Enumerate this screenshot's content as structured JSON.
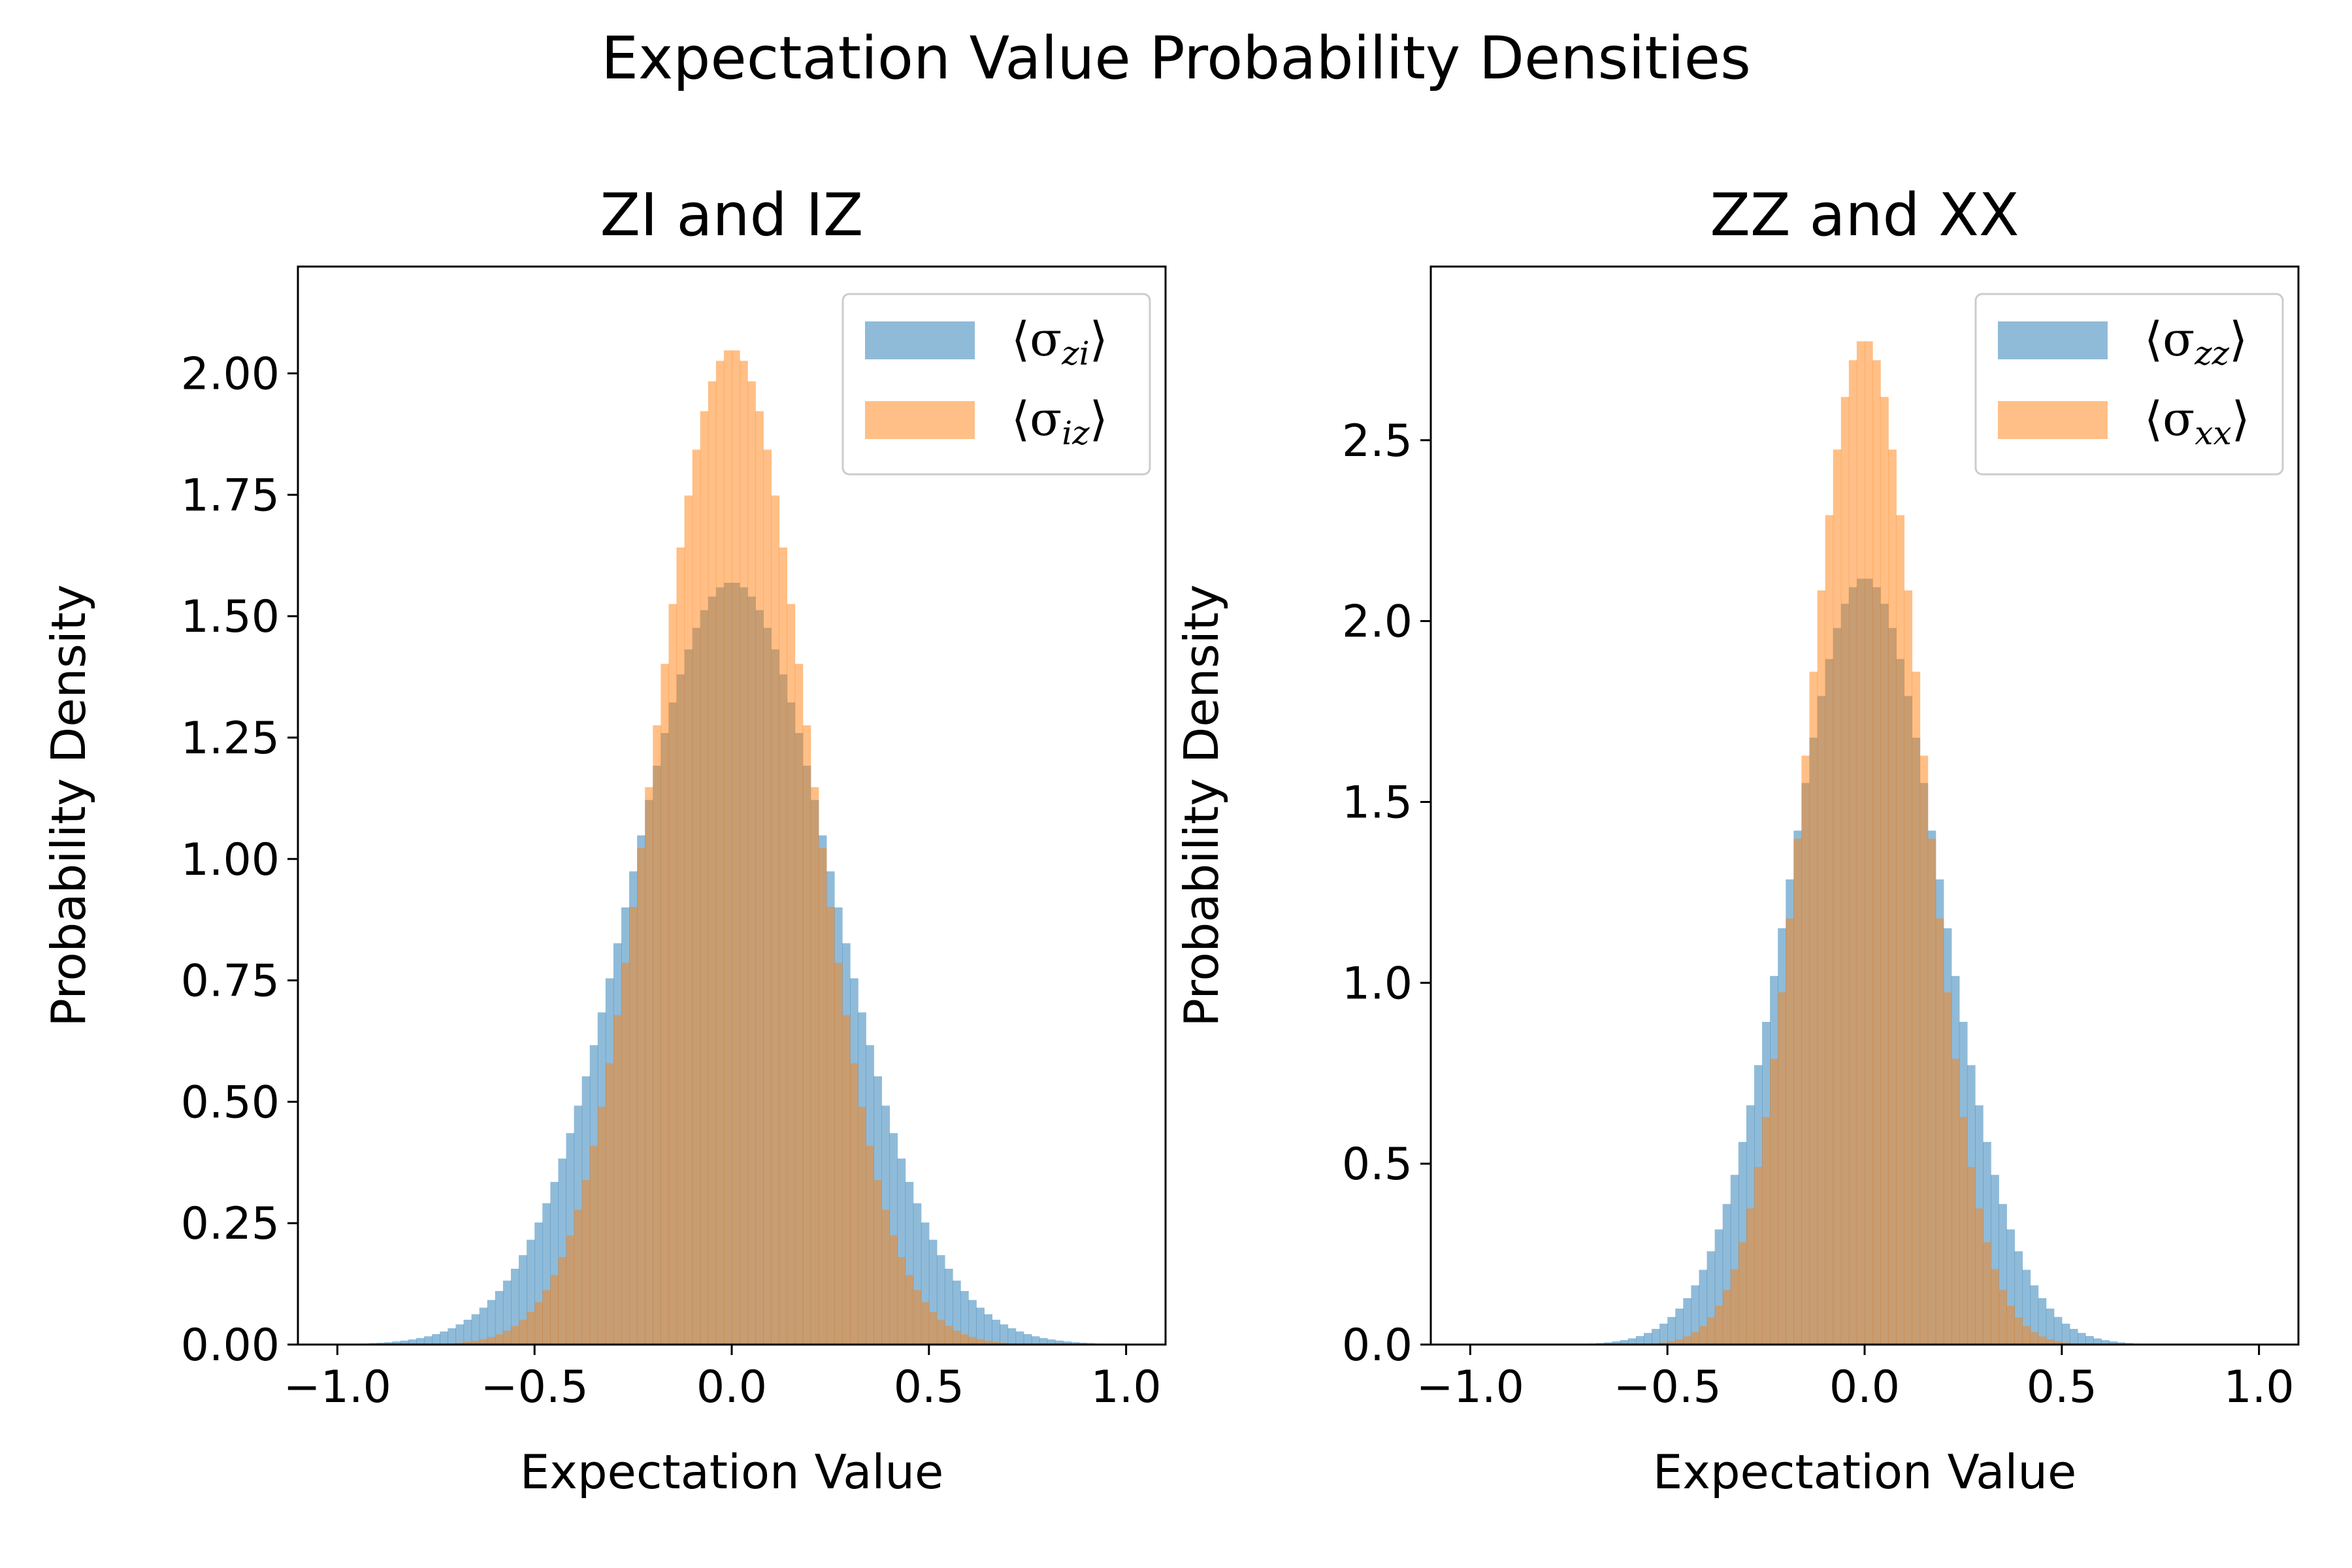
{
  "figure": {
    "title": "Expectation Value Probability Densities"
  },
  "chart_data": [
    {
      "type": "histogram",
      "title": "ZI and IZ",
      "xlabel": "Expectation Value",
      "ylabel": "Probability Density",
      "xlim": [
        -1.1,
        1.1
      ],
      "ylim": [
        0,
        2.22
      ],
      "xticks": [
        -1.0,
        -0.5,
        0.0,
        0.5,
        1.0
      ],
      "xtick_labels": [
        "−1.0",
        "−0.5",
        "0.0",
        "0.5",
        "1.0"
      ],
      "yticks": [
        0,
        0.25,
        0.5,
        0.75,
        1.0,
        1.25,
        1.5,
        1.75,
        2.0
      ],
      "ytick_labels": [
        "0.00",
        "0.25",
        "0.50",
        "0.75",
        "1.00",
        "1.25",
        "1.50",
        "1.75",
        "2.00"
      ],
      "legend_position": "upper right",
      "bins": 100,
      "series": [
        {
          "name": "⟨σ",
          "sub": "zi",
          "close": "⟩",
          "color": "#1f77b4",
          "alpha": 0.5,
          "sigma": 0.256,
          "peak": 1.57
        },
        {
          "name": "⟨σ",
          "sub": "iz",
          "close": "⟩",
          "color": "#ff7f0e",
          "alpha": 0.5,
          "sigma": 0.195,
          "peak": 2.05
        }
      ]
    },
    {
      "type": "histogram",
      "title": "ZZ and XX",
      "xlabel": "Expectation Value",
      "ylabel": "Probability Density",
      "xlim": [
        -1.1,
        1.1
      ],
      "ylim": [
        0,
        2.98
      ],
      "xticks": [
        -1.0,
        -0.5,
        0.0,
        0.5,
        1.0
      ],
      "xtick_labels": [
        "−1.0",
        "−0.5",
        "0.0",
        "0.5",
        "1.0"
      ],
      "yticks": [
        0,
        0.5,
        1.0,
        1.5,
        2.0,
        2.5
      ],
      "ytick_labels": [
        "0.0",
        "0.5",
        "1.0",
        "1.5",
        "2.0",
        "2.5"
      ],
      "legend_position": "upper right",
      "bins": 100,
      "series": [
        {
          "name": "⟨σ",
          "sub": "zz",
          "close": "⟩",
          "color": "#1f77b4",
          "alpha": 0.5,
          "sigma": 0.19,
          "peak": 2.12
        },
        {
          "name": "⟨σ",
          "sub": "xx",
          "close": "⟩",
          "color": "#ff7f0e",
          "alpha": 0.5,
          "sigma": 0.145,
          "peak": 2.78
        }
      ]
    }
  ]
}
